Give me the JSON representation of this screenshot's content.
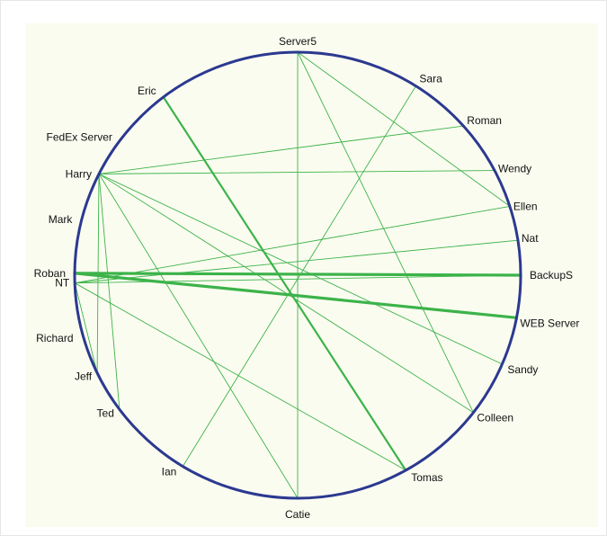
{
  "diagram": {
    "type": "circular-network",
    "colors": {
      "circle": "#2b3990",
      "edge": "#3cb34a",
      "panel": "#fbfcf0",
      "label": "#111111"
    },
    "nodes": [
      {
        "id": "server5",
        "label": "Server5"
      },
      {
        "id": "sara",
        "label": "Sara"
      },
      {
        "id": "roman",
        "label": "Roman"
      },
      {
        "id": "wendy",
        "label": "Wendy"
      },
      {
        "id": "ellen",
        "label": "Ellen"
      },
      {
        "id": "nat",
        "label": "Nat"
      },
      {
        "id": "backups",
        "label": "BackupS"
      },
      {
        "id": "web-server",
        "label": "WEB Server"
      },
      {
        "id": "sandy",
        "label": "Sandy"
      },
      {
        "id": "colleen",
        "label": "Colleen"
      },
      {
        "id": "tomas",
        "label": "Tomas"
      },
      {
        "id": "catie",
        "label": "Catie"
      },
      {
        "id": "ian",
        "label": "Ian"
      },
      {
        "id": "ted",
        "label": "Ted"
      },
      {
        "id": "jeff",
        "label": "Jeff"
      },
      {
        "id": "richard",
        "label": "Richard"
      },
      {
        "id": "nt",
        "label": "NT"
      },
      {
        "id": "roban",
        "label": "Roban"
      },
      {
        "id": "mark",
        "label": "Mark"
      },
      {
        "id": "harry",
        "label": "Harry"
      },
      {
        "id": "fedex-server",
        "label": "FedEx Server"
      },
      {
        "id": "eric",
        "label": "Eric"
      }
    ],
    "edges": [
      {
        "from": "server5",
        "to": "catie",
        "weight": 1
      },
      {
        "from": "server5",
        "to": "ellen",
        "weight": 1
      },
      {
        "from": "server5",
        "to": "colleen",
        "weight": 1
      },
      {
        "from": "sara",
        "to": "ian",
        "weight": 1
      },
      {
        "from": "eric",
        "to": "tomas",
        "weight": 2
      },
      {
        "from": "harry",
        "to": "roman",
        "weight": 1
      },
      {
        "from": "harry",
        "to": "wendy",
        "weight": 1
      },
      {
        "from": "harry",
        "to": "sandy",
        "weight": 1
      },
      {
        "from": "harry",
        "to": "colleen",
        "weight": 1
      },
      {
        "from": "harry",
        "to": "jeff",
        "weight": 1
      },
      {
        "from": "harry",
        "to": "ted",
        "weight": 1
      },
      {
        "from": "harry",
        "to": "catie",
        "weight": 1
      },
      {
        "from": "harry",
        "to": "fedex-server",
        "weight": 1
      },
      {
        "from": "roban",
        "to": "backups",
        "weight": 3
      },
      {
        "from": "roban",
        "to": "web-server",
        "weight": 3
      },
      {
        "from": "nt",
        "to": "ellen",
        "weight": 1
      },
      {
        "from": "nt",
        "to": "nat",
        "weight": 1
      },
      {
        "from": "nt",
        "to": "backups",
        "weight": 1
      },
      {
        "from": "nt",
        "to": "tomas",
        "weight": 1
      },
      {
        "from": "nt",
        "to": "jeff",
        "weight": 1
      }
    ]
  }
}
